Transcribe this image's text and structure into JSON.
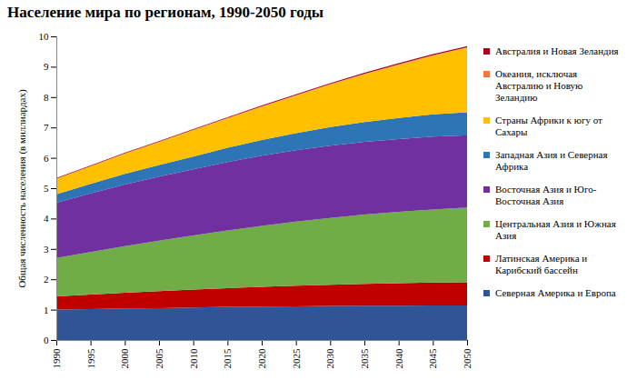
{
  "chart_data": {
    "type": "area",
    "title": "Население мира по регионам, 1990-2050 годы",
    "y_label": "Общая численность населения (в миллиардах)",
    "stacked": true,
    "grid": false,
    "legend": "right",
    "x": [
      1990,
      1995,
      2000,
      2005,
      2010,
      2015,
      2020,
      2025,
      2030,
      2035,
      2040,
      2045,
      2050
    ],
    "xlim": [
      1990,
      2050
    ],
    "xticks": [
      1990,
      1995,
      2000,
      2005,
      2010,
      2015,
      2020,
      2025,
      2030,
      2035,
      2040,
      2045,
      2050
    ],
    "ylim": [
      0,
      10
    ],
    "yticks": [
      0,
      1,
      2,
      3,
      4,
      5,
      6,
      7,
      8,
      9,
      10
    ],
    "series": [
      {
        "name": "Северная Америка и Европа",
        "color": "#2f5597",
        "values": [
          1.0,
          1.02,
          1.04,
          1.05,
          1.07,
          1.09,
          1.1,
          1.11,
          1.12,
          1.13,
          1.13,
          1.14,
          1.14
        ]
      },
      {
        "name": "Латинская Америка и Карибский бассейн",
        "color": "#c00000",
        "values": [
          0.44,
          0.48,
          0.52,
          0.56,
          0.59,
          0.62,
          0.65,
          0.68,
          0.7,
          0.72,
          0.74,
          0.75,
          0.76
        ]
      },
      {
        "name": "Центральная Азия и Южная Азия",
        "color": "#70ad47",
        "values": [
          1.26,
          1.4,
          1.53,
          1.66,
          1.78,
          1.9,
          2.01,
          2.11,
          2.2,
          2.28,
          2.35,
          2.41,
          2.46
        ]
      },
      {
        "name": "Восточная Азия и Юго-Восточная Азия",
        "color": "#7030a0",
        "values": [
          1.82,
          1.93,
          2.03,
          2.11,
          2.18,
          2.25,
          2.31,
          2.35,
          2.38,
          2.4,
          2.4,
          2.4,
          2.38
        ]
      },
      {
        "name": "Западная Азия и Северная Африка",
        "color": "#2e75b6",
        "values": [
          0.28,
          0.31,
          0.35,
          0.38,
          0.42,
          0.47,
          0.52,
          0.56,
          0.61,
          0.65,
          0.69,
          0.73,
          0.76
        ]
      },
      {
        "name": "Страны Африки к югу от Сахары",
        "color": "#ffc000",
        "values": [
          0.51,
          0.58,
          0.67,
          0.76,
          0.87,
          0.97,
          1.09,
          1.24,
          1.4,
          1.57,
          1.75,
          1.93,
          2.12
        ]
      },
      {
        "name": "Океания, исключая Австралию и Новую Зеландию",
        "color": "#f4793b",
        "values": [
          0.006,
          0.007,
          0.008,
          0.009,
          0.01,
          0.011,
          0.013,
          0.014,
          0.015,
          0.017,
          0.018,
          0.019,
          0.02
        ]
      },
      {
        "name": "Австралия и Новая Зеландия",
        "color": "#a50021",
        "values": [
          0.02,
          0.021,
          0.023,
          0.024,
          0.025,
          0.027,
          0.03,
          0.031,
          0.033,
          0.035,
          0.036,
          0.037,
          0.038
        ]
      }
    ]
  }
}
